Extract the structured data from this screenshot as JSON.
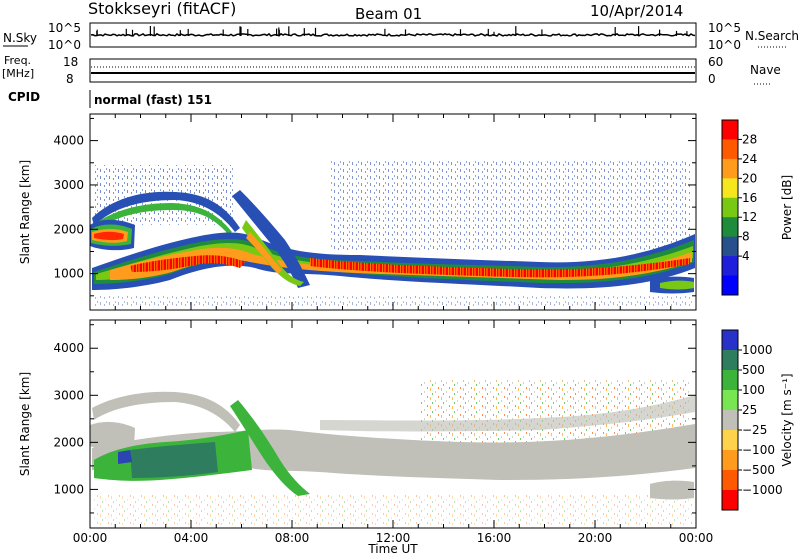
{
  "header": {
    "station": "Stokkseyri (fitACF)",
    "beam": "Beam 01",
    "date": "10/Apr/2014"
  },
  "top_panels": {
    "nsky_label": "N.Sky",
    "nsky_ticks": [
      "10^5",
      "10^0"
    ],
    "nsearch_label": "N.Search",
    "nsearch_ticks": [
      "10^5",
      "10^0"
    ],
    "freq_label": "Freq.",
    "freq_unit": "[MHz]",
    "freq_ticks": [
      "18",
      "8"
    ],
    "nave_label": "Nave",
    "nave_ticks": [
      "60",
      "0"
    ],
    "cpid_label": "CPID",
    "cpid_value": "normal (fast) 151"
  },
  "chart_data": [
    {
      "type": "heatmap",
      "name": "power",
      "xlabel": "",
      "ylabel": "Slant Range [km]",
      "x_ticks": [
        "00:00",
        "04:00",
        "08:00",
        "12:00",
        "16:00",
        "20:00",
        "00:00"
      ],
      "xlim_hours": [
        0,
        24
      ],
      "y_ticks": [
        "1000",
        "2000",
        "3000",
        "4000"
      ],
      "ylim_km": [
        180,
        4600
      ],
      "colorbar_label": "Power [dB]",
      "colorbar_ticks": [
        "28",
        "24",
        "20",
        "16",
        "12",
        "8",
        "4"
      ],
      "colorbar_colors": [
        "#ff0000",
        "#ff5a00",
        "#ff9c1e",
        "#f5e61e",
        "#78c814",
        "#1e8c3c",
        "#28508c",
        "#1e1edc",
        "#0000ff"
      ]
    },
    {
      "type": "heatmap",
      "name": "velocity",
      "xlabel": "Time UT",
      "ylabel": "Slant Range [km]",
      "x_ticks": [
        "00:00",
        "04:00",
        "08:00",
        "12:00",
        "16:00",
        "20:00",
        "00:00"
      ],
      "xlim_hours": [
        0,
        24
      ],
      "y_ticks": [
        "1000",
        "2000",
        "3000",
        "4000"
      ],
      "ylim_km": [
        180,
        4600
      ],
      "colorbar_label": "Velocity [m s⁻¹]",
      "colorbar_ticks": [
        "1000",
        "500",
        "100",
        "25",
        "−25",
        "−100",
        "−500",
        "−1000"
      ],
      "colorbar_colors": [
        "#2832c8",
        "#2e7d5e",
        "#3cb43c",
        "#78e650",
        "#c0c0b8",
        "#ffd24b",
        "#ff9c1e",
        "#ff5a00",
        "#ff0000"
      ]
    }
  ]
}
